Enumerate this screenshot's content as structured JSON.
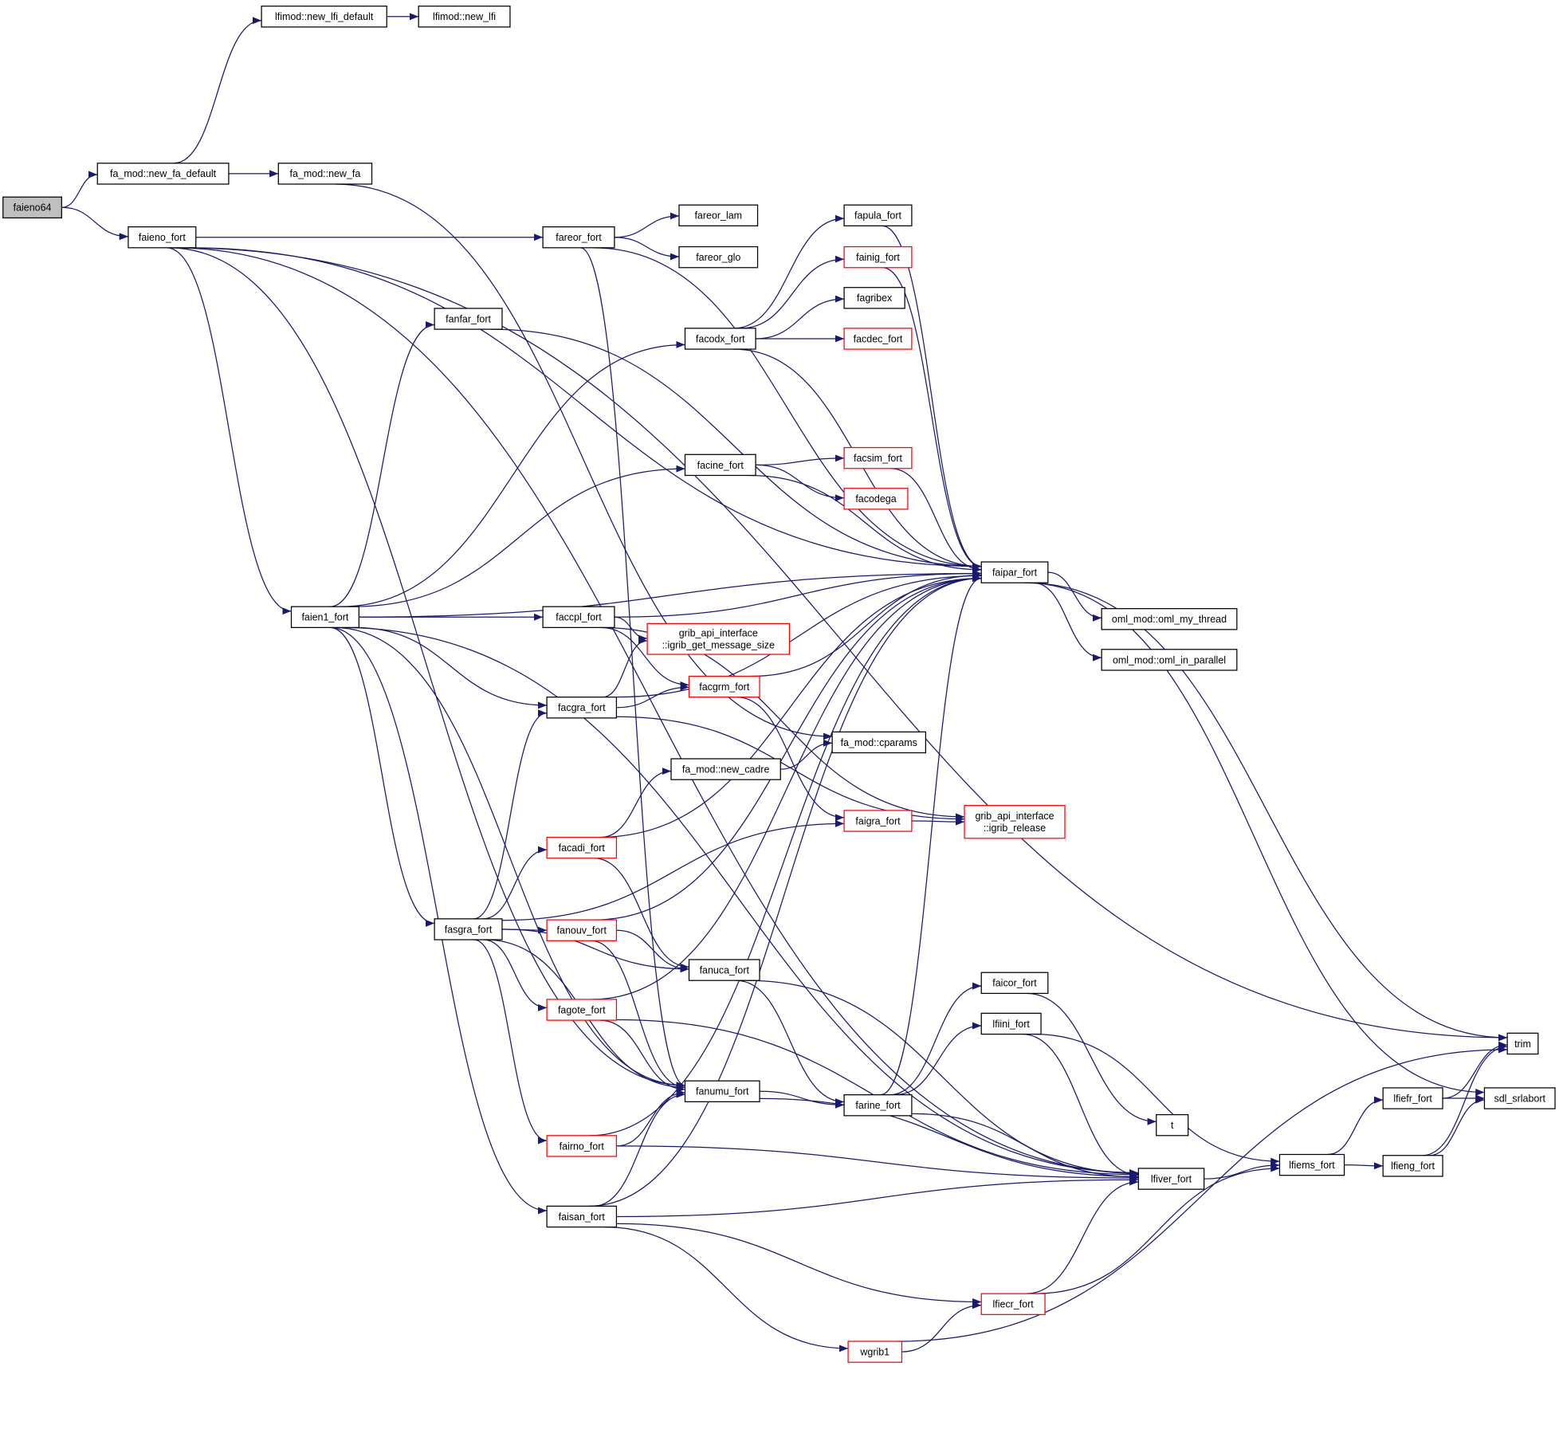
{
  "colors": {
    "edge": "#191970",
    "root_fill": "#bfbfbf",
    "incomplete_border": "#ff0000",
    "normal_border": "#000000"
  },
  "nodes": [
    {
      "id": "faieno64",
      "label": [
        "faieno64"
      ],
      "root": true
    },
    {
      "id": "new_fa_default",
      "label": [
        "fa_mod::new_fa_default"
      ]
    },
    {
      "id": "new_lfi_default",
      "label": [
        "lfimod::new_lfi_default"
      ]
    },
    {
      "id": "new_lfi",
      "label": [
        "lfimod::new_lfi"
      ]
    },
    {
      "id": "new_fa",
      "label": [
        "fa_mod::new_fa"
      ]
    },
    {
      "id": "faieno_fort",
      "label": [
        "faieno_fort"
      ]
    },
    {
      "id": "fareor_fort",
      "label": [
        "fareor_fort"
      ]
    },
    {
      "id": "fareor_lam",
      "label": [
        "fareor_lam"
      ]
    },
    {
      "id": "fareor_glo",
      "label": [
        "fareor_glo"
      ]
    },
    {
      "id": "fapula_fort",
      "label": [
        "fapula_fort"
      ]
    },
    {
      "id": "fainig_fort",
      "label": [
        "fainig_fort"
      ],
      "red": true
    },
    {
      "id": "fagribex",
      "label": [
        "fagribex"
      ]
    },
    {
      "id": "fanfar_fort",
      "label": [
        "fanfar_fort"
      ]
    },
    {
      "id": "facodx_fort",
      "label": [
        "facodx_fort"
      ]
    },
    {
      "id": "facdec_fort",
      "label": [
        "facdec_fort"
      ],
      "red": true
    },
    {
      "id": "facine_fort",
      "label": [
        "facine_fort"
      ]
    },
    {
      "id": "facsim_fort",
      "label": [
        "facsim_fort"
      ],
      "red": true
    },
    {
      "id": "facodega",
      "label": [
        "facodega"
      ],
      "red": true
    },
    {
      "id": "faipar_fort",
      "label": [
        "faipar_fort"
      ]
    },
    {
      "id": "oml_my_thread",
      "label": [
        "oml_mod::oml_my_thread"
      ]
    },
    {
      "id": "oml_in_parallel",
      "label": [
        "oml_mod::oml_in_parallel"
      ]
    },
    {
      "id": "faien1_fort",
      "label": [
        "faien1_fort"
      ]
    },
    {
      "id": "faccpl_fort",
      "label": [
        "faccpl_fort"
      ]
    },
    {
      "id": "igrib_get_message_size",
      "label": [
        "grib_api_interface",
        "::igrib_get_message_size"
      ],
      "red": true
    },
    {
      "id": "facgrm_fort",
      "label": [
        "facgrm_fort"
      ],
      "red": true
    },
    {
      "id": "facgra_fort",
      "label": [
        "facgra_fort"
      ]
    },
    {
      "id": "cparams",
      "label": [
        "fa_mod::cparams"
      ]
    },
    {
      "id": "new_cadre",
      "label": [
        "fa_mod::new_cadre"
      ]
    },
    {
      "id": "faigra_fort",
      "label": [
        "faigra_fort"
      ],
      "red": true
    },
    {
      "id": "igrib_release",
      "label": [
        "grib_api_interface",
        "::igrib_release"
      ],
      "red": true
    },
    {
      "id": "facadi_fort",
      "label": [
        "facadi_fort"
      ],
      "red": true
    },
    {
      "id": "fasgra_fort",
      "label": [
        "fasgra_fort"
      ]
    },
    {
      "id": "fanouv_fort",
      "label": [
        "fanouv_fort"
      ],
      "red": true
    },
    {
      "id": "fanuca_fort",
      "label": [
        "fanuca_fort"
      ]
    },
    {
      "id": "fagote_fort",
      "label": [
        "fagote_fort"
      ],
      "red": true
    },
    {
      "id": "faicor_fort",
      "label": [
        "faicor_fort"
      ]
    },
    {
      "id": "lfiini_fort",
      "label": [
        "lfiini_fort"
      ]
    },
    {
      "id": "trim",
      "label": [
        "trim"
      ]
    },
    {
      "id": "fanumu_fort",
      "label": [
        "fanumu_fort"
      ]
    },
    {
      "id": "farine_fort",
      "label": [
        "farine_fort"
      ]
    },
    {
      "id": "t",
      "label": [
        "t"
      ]
    },
    {
      "id": "lfiefr_fort",
      "label": [
        "lfiefr_fort"
      ]
    },
    {
      "id": "sdl_srlabort",
      "label": [
        "sdl_srlabort"
      ]
    },
    {
      "id": "fairno_fort",
      "label": [
        "fairno_fort"
      ],
      "red": true
    },
    {
      "id": "lfiems_fort",
      "label": [
        "lfiems_fort"
      ]
    },
    {
      "id": "lfieng_fort",
      "label": [
        "lfieng_fort"
      ]
    },
    {
      "id": "lfiver_fort",
      "label": [
        "lfiver_fort"
      ]
    },
    {
      "id": "faisan_fort",
      "label": [
        "faisan_fort"
      ]
    },
    {
      "id": "lfiecr_fort",
      "label": [
        "lfiecr_fort"
      ],
      "red": true
    },
    {
      "id": "wgrib1",
      "label": [
        "wgrib1"
      ],
      "red": true
    }
  ],
  "edges": [
    [
      "faieno64",
      "new_fa_default"
    ],
    [
      "faieno64",
      "faieno_fort"
    ],
    [
      "new_fa_default",
      "new_lfi_default"
    ],
    [
      "new_fa_default",
      "new_fa"
    ],
    [
      "new_lfi_default",
      "new_lfi"
    ],
    [
      "new_fa",
      "cparams"
    ],
    [
      "faieno_fort",
      "trim"
    ],
    [
      "faieno_fort",
      "faipar_fort"
    ],
    [
      "faieno_fort",
      "fareor_fort"
    ],
    [
      "faieno_fort",
      "faien1_fort"
    ],
    [
      "faieno_fort",
      "fanumu_fort"
    ],
    [
      "faieno_fort",
      "lfiver_fort"
    ],
    [
      "fareor_fort",
      "fareor_lam"
    ],
    [
      "fareor_fort",
      "fareor_glo"
    ],
    [
      "fareor_fort",
      "faipar_fort"
    ],
    [
      "fareor_fort",
      "fanumu_fort"
    ],
    [
      "fanfar_fort",
      "faipar_fort"
    ],
    [
      "faien1_fort",
      "fanfar_fort"
    ],
    [
      "faien1_fort",
      "facodx_fort"
    ],
    [
      "faien1_fort",
      "facine_fort"
    ],
    [
      "faien1_fort",
      "faipar_fort"
    ],
    [
      "faien1_fort",
      "faccpl_fort"
    ],
    [
      "faien1_fort",
      "facgra_fort"
    ],
    [
      "faien1_fort",
      "fasgra_fort"
    ],
    [
      "faien1_fort",
      "fanumu_fort"
    ],
    [
      "faien1_fort",
      "faisan_fort"
    ],
    [
      "faien1_fort",
      "lfiver_fort"
    ],
    [
      "facodx_fort",
      "fapula_fort"
    ],
    [
      "facodx_fort",
      "fainig_fort"
    ],
    [
      "facodx_fort",
      "fagribex"
    ],
    [
      "facodx_fort",
      "facdec_fort"
    ],
    [
      "facodx_fort",
      "faipar_fort"
    ],
    [
      "fapula_fort",
      "faipar_fort"
    ],
    [
      "fainig_fort",
      "faipar_fort"
    ],
    [
      "facine_fort",
      "facsim_fort"
    ],
    [
      "facine_fort",
      "facodega"
    ],
    [
      "facine_fort",
      "faipar_fort"
    ],
    [
      "facsim_fort",
      "faipar_fort"
    ],
    [
      "faipar_fort",
      "oml_my_thread"
    ],
    [
      "faipar_fort",
      "oml_in_parallel"
    ],
    [
      "faipar_fort",
      "trim"
    ],
    [
      "faipar_fort",
      "sdl_srlabort"
    ],
    [
      "faccpl_fort",
      "igrib_get_message_size"
    ],
    [
      "faccpl_fort",
      "facgrm_fort"
    ],
    [
      "faccpl_fort",
      "faipar_fort"
    ],
    [
      "faccpl_fort",
      "igrib_release"
    ],
    [
      "facgra_fort",
      "igrib_get_message_size"
    ],
    [
      "facgra_fort",
      "facgrm_fort"
    ],
    [
      "facgra_fort",
      "faipar_fort"
    ],
    [
      "facgra_fort",
      "igrib_release"
    ],
    [
      "facgrm_fort",
      "faipar_fort"
    ],
    [
      "facgrm_fort",
      "faigra_fort"
    ],
    [
      "faigra_fort",
      "igrib_release"
    ],
    [
      "new_cadre",
      "cparams"
    ],
    [
      "facadi_fort",
      "new_cadre"
    ],
    [
      "facadi_fort",
      "faipar_fort"
    ],
    [
      "facadi_fort",
      "fanuca_fort"
    ],
    [
      "fasgra_fort",
      "facgra_fort"
    ],
    [
      "fasgra_fort",
      "facadi_fort"
    ],
    [
      "fasgra_fort",
      "faigra_fort"
    ],
    [
      "fasgra_fort",
      "fanouv_fort"
    ],
    [
      "fasgra_fort",
      "fanuca_fort"
    ],
    [
      "fasgra_fort",
      "fagote_fort"
    ],
    [
      "fasgra_fort",
      "fanumu_fort"
    ],
    [
      "fasgra_fort",
      "fairno_fort"
    ],
    [
      "fanouv_fort",
      "fanuca_fort"
    ],
    [
      "fanouv_fort",
      "fanumu_fort"
    ],
    [
      "fanouv_fort",
      "faipar_fort"
    ],
    [
      "fanuca_fort",
      "farine_fort"
    ],
    [
      "fanuca_fort",
      "lfiver_fort"
    ],
    [
      "fagote_fort",
      "fanumu_fort"
    ],
    [
      "fagote_fort",
      "faipar_fort"
    ],
    [
      "fagote_fort",
      "lfiver_fort"
    ],
    [
      "faicor_fort",
      "t"
    ],
    [
      "lfiini_fort",
      "lfiver_fort"
    ],
    [
      "lfiini_fort",
      "lfiems_fort"
    ],
    [
      "fanumu_fort",
      "farine_fort"
    ],
    [
      "fanumu_fort",
      "lfiver_fort"
    ],
    [
      "farine_fort",
      "faicor_fort"
    ],
    [
      "farine_fort",
      "lfiini_fort"
    ],
    [
      "farine_fort",
      "faipar_fort"
    ],
    [
      "farine_fort",
      "lfiver_fort"
    ],
    [
      "fairno_fort",
      "fanumu_fort"
    ],
    [
      "fairno_fort",
      "faipar_fort"
    ],
    [
      "fairno_fort",
      "lfiver_fort"
    ],
    [
      "faisan_fort",
      "fanumu_fort"
    ],
    [
      "faisan_fort",
      "faipar_fort"
    ],
    [
      "faisan_fort",
      "lfiver_fort"
    ],
    [
      "faisan_fort",
      "lfiecr_fort"
    ],
    [
      "faisan_fort",
      "wgrib1"
    ],
    [
      "lfiecr_fort",
      "lfiver_fort"
    ],
    [
      "lfiecr_fort",
      "lfiems_fort"
    ],
    [
      "wgrib1",
      "lfiecr_fort"
    ],
    [
      "wgrib1",
      "trim"
    ],
    [
      "lfiver_fort",
      "lfiems_fort"
    ],
    [
      "lfiems_fort",
      "lfiefr_fort"
    ],
    [
      "lfiems_fort",
      "lfieng_fort"
    ],
    [
      "lfiefr_fort",
      "trim"
    ],
    [
      "lfiefr_fort",
      "sdl_srlabort"
    ],
    [
      "lfieng_fort",
      "trim"
    ],
    [
      "lfieng_fort",
      "sdl_srlabort"
    ]
  ]
}
